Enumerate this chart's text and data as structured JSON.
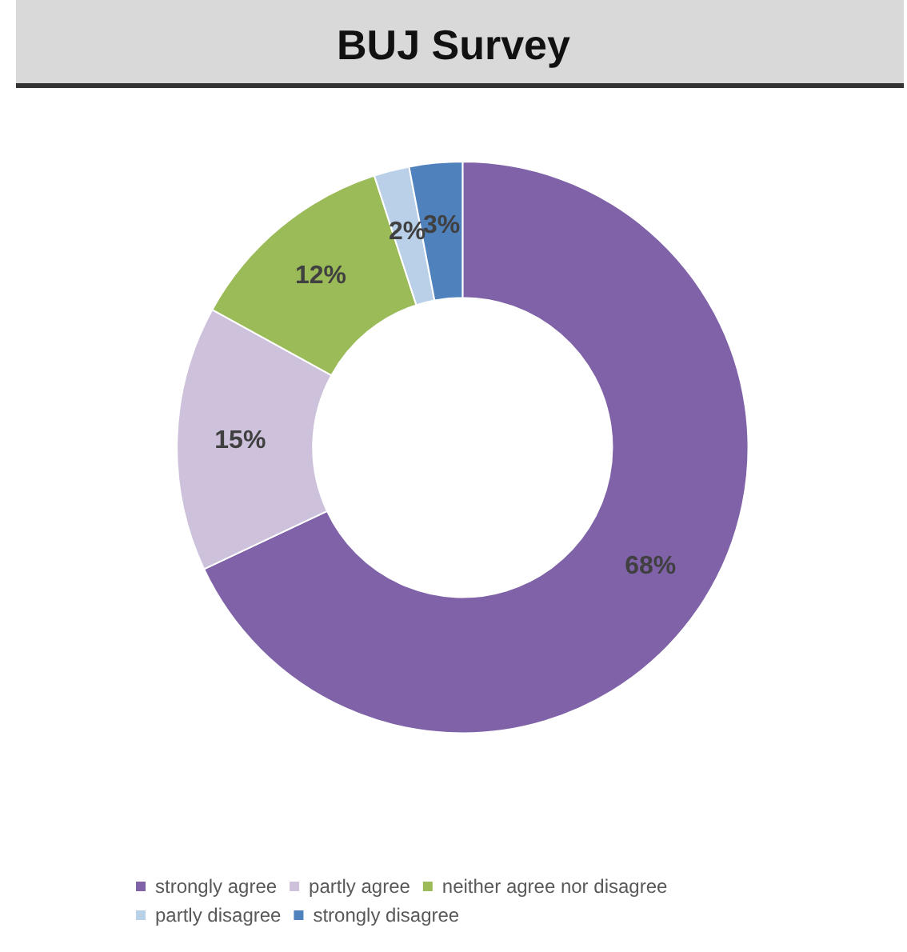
{
  "chart_data": {
    "type": "donut",
    "title": "BUJ Survey",
    "categories": [
      "strongly agree",
      "partly agree",
      "neither agree nor disagree",
      "partly disagree",
      "strongly disagree"
    ],
    "values": [
      68,
      15,
      12,
      2,
      3
    ],
    "value_labels": [
      "68%",
      "15%",
      "12%",
      "2%",
      "3%"
    ],
    "colors": [
      "#7f62a8",
      "#cdc1dc",
      "#9bbb59",
      "#bad0e8",
      "#4f81bd"
    ],
    "legend": "bottom"
  }
}
